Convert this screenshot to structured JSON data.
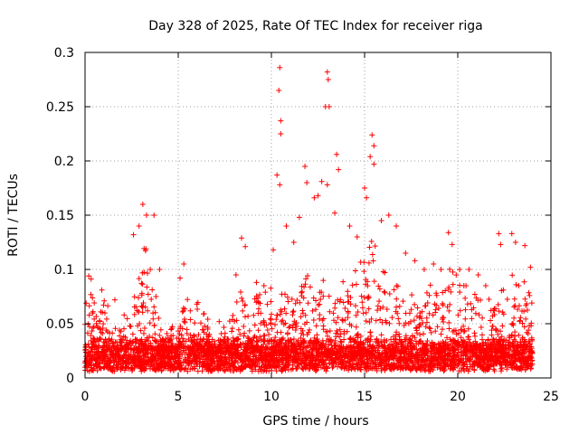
{
  "chart_data": {
    "type": "scatter",
    "title": "Day 328 of 2025, Rate Of TEC Index for receiver riga",
    "xlabel": "GPS time / hours",
    "ylabel": "ROTI / TECUs",
    "xlim": [
      0,
      25
    ],
    "ylim": [
      0,
      0.3
    ],
    "xticks": [
      0,
      5,
      10,
      15,
      20,
      25
    ],
    "xtick_labels": [
      "0",
      "5",
      "10",
      "15",
      "20",
      "25"
    ],
    "yticks": [
      0,
      0.05,
      0.1,
      0.15,
      0.2,
      0.25,
      0.3
    ],
    "ytick_labels": [
      "0",
      "0.05",
      "0.1",
      "0.15",
      "0.2",
      "0.25",
      "0.3"
    ],
    "grid": true,
    "marker": "+",
    "color": "#ff0000",
    "series": [
      {
        "name": "ROTI",
        "description": "Dense scatter of ROTI values from 0 to 24 h; baseline ~0.01-0.04 with bursts up to ~0.1-0.16 around 2.5-4 h and 8-24 h; notable outliers near 10.4 h (0.286) and 13 h (0.282).",
        "points": [
          [
            0.2,
            0.094
          ],
          [
            0.9,
            0.081
          ],
          [
            1.6,
            0.072
          ],
          [
            2.1,
            0.058
          ],
          [
            2.6,
            0.132
          ],
          [
            2.9,
            0.14
          ],
          [
            3.1,
            0.16
          ],
          [
            3.3,
            0.15
          ],
          [
            3.5,
            0.1
          ],
          [
            3.7,
            0.15
          ],
          [
            4.0,
            0.1
          ],
          [
            5.1,
            0.092
          ],
          [
            5.3,
            0.105
          ],
          [
            6.0,
            0.068
          ],
          [
            7.2,
            0.052
          ],
          [
            8.1,
            0.095
          ],
          [
            8.4,
            0.129
          ],
          [
            8.6,
            0.121
          ],
          [
            9.2,
            0.088
          ],
          [
            9.6,
            0.085
          ],
          [
            10.1,
            0.118
          ],
          [
            10.3,
            0.187
          ],
          [
            10.4,
            0.265
          ],
          [
            10.45,
            0.286
          ],
          [
            10.5,
            0.237
          ],
          [
            10.5,
            0.225
          ],
          [
            10.45,
            0.178
          ],
          [
            10.8,
            0.14
          ],
          [
            11.2,
            0.125
          ],
          [
            11.5,
            0.148
          ],
          [
            11.8,
            0.195
          ],
          [
            11.9,
            0.18
          ],
          [
            12.3,
            0.166
          ],
          [
            12.5,
            0.168
          ],
          [
            12.7,
            0.181
          ],
          [
            12.9,
            0.25
          ],
          [
            13.0,
            0.282
          ],
          [
            13.05,
            0.275
          ],
          [
            13.1,
            0.25
          ],
          [
            13.0,
            0.178
          ],
          [
            13.5,
            0.206
          ],
          [
            13.6,
            0.192
          ],
          [
            13.4,
            0.152
          ],
          [
            14.2,
            0.14
          ],
          [
            14.6,
            0.13
          ],
          [
            15.0,
            0.175
          ],
          [
            15.1,
            0.166
          ],
          [
            15.3,
            0.204
          ],
          [
            15.4,
            0.224
          ],
          [
            15.5,
            0.214
          ],
          [
            15.5,
            0.197
          ],
          [
            15.9,
            0.145
          ],
          [
            16.3,
            0.15
          ],
          [
            16.7,
            0.14
          ],
          [
            17.2,
            0.115
          ],
          [
            17.7,
            0.108
          ],
          [
            18.2,
            0.1
          ],
          [
            18.7,
            0.105
          ],
          [
            19.1,
            0.1
          ],
          [
            19.5,
            0.134
          ],
          [
            19.7,
            0.123
          ],
          [
            20.1,
            0.1
          ],
          [
            20.6,
            0.1
          ],
          [
            21.1,
            0.095
          ],
          [
            21.5,
            0.085
          ],
          [
            22.2,
            0.133
          ],
          [
            22.3,
            0.123
          ],
          [
            22.9,
            0.133
          ],
          [
            23.1,
            0.125
          ],
          [
            23.6,
            0.122
          ],
          [
            23.9,
            0.102
          ]
        ]
      }
    ]
  }
}
